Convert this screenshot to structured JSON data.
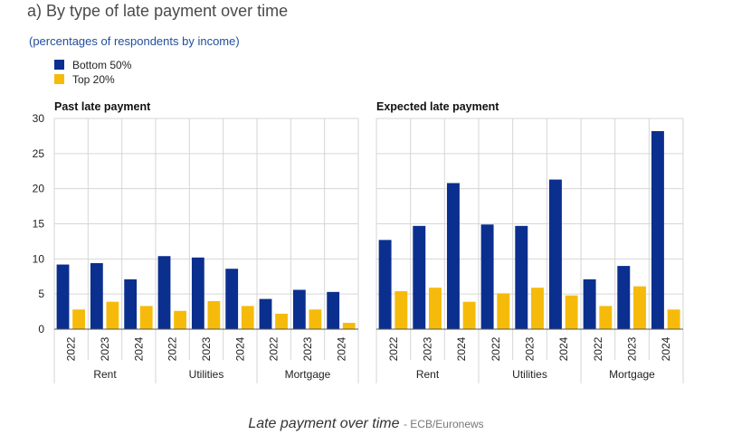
{
  "title": "a) By type of late payment over time",
  "subtitle": "(percentages of respondents by income)",
  "caption": {
    "text": "Late payment over time",
    "source": "- ECB/Euronews"
  },
  "colors": {
    "bottom50": "#0b2f8f",
    "top20": "#f6bb0a",
    "grid": "#d6d6d6",
    "axis": "#555555"
  },
  "chart_data": [
    {
      "type": "bar",
      "title": "Past late payment",
      "groups": [
        "Rent",
        "Utilities",
        "Mortgage"
      ],
      "categories": [
        "2022",
        "2023",
        "2024",
        "2022",
        "2023",
        "2024",
        "2022",
        "2023",
        "2024"
      ],
      "ylim": [
        0,
        30
      ],
      "yticks": [
        "0",
        "5",
        "10",
        "15",
        "20",
        "25",
        "30"
      ],
      "legend": "top-left",
      "series": [
        {
          "name": "Bottom 50%",
          "values": [
            9.2,
            9.4,
            7.1,
            10.4,
            10.2,
            8.6,
            4.3,
            5.6,
            5.3
          ]
        },
        {
          "name": "Top 20%",
          "values": [
            2.8,
            3.9,
            3.3,
            2.6,
            4.0,
            3.3,
            2.2,
            2.8,
            0.9
          ]
        }
      ]
    },
    {
      "type": "bar",
      "title": "Expected late payment",
      "groups": [
        "Rent",
        "Utilities",
        "Mortgage"
      ],
      "categories": [
        "2022",
        "2023",
        "2024",
        "2022",
        "2023",
        "2024",
        "2022",
        "2023",
        "2024"
      ],
      "ylim": [
        0,
        30
      ],
      "legend": "top-left",
      "series": [
        {
          "name": "Bottom 50%",
          "values": [
            12.7,
            14.7,
            20.8,
            14.9,
            14.7,
            21.3,
            7.1,
            9.0,
            28.2
          ]
        },
        {
          "name": "Top 20%",
          "values": [
            5.4,
            5.9,
            3.9,
            5.1,
            5.9,
            4.8,
            3.3,
            6.1,
            2.8
          ]
        }
      ]
    }
  ]
}
